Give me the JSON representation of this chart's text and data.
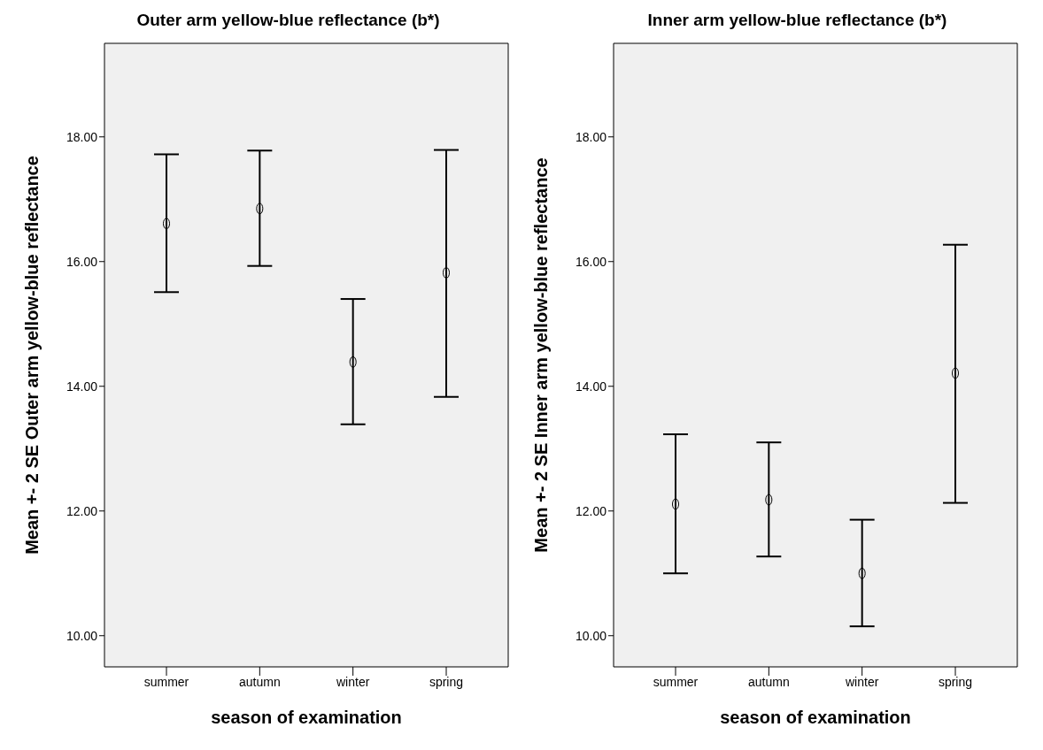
{
  "chart_data": [
    {
      "type": "scatter",
      "title": "Outer arm yellow-blue reflectance (b*)",
      "xlabel": "season of examination",
      "ylabel": "Mean +- 2 SE Outer arm yellow-blue reflectance",
      "categories": [
        "summer",
        "autumn",
        "winter",
        "spring"
      ],
      "color": "#000000",
      "values": [
        16.61,
        16.85,
        14.39,
        15.82
      ],
      "errors": [
        [
          15.51,
          17.72
        ],
        [
          15.93,
          17.78
        ],
        [
          13.39,
          15.4
        ],
        [
          13.83,
          17.79
        ]
      ],
      "ylim": [
        9.5,
        19.5
      ],
      "yticks": [
        {
          "value": 10,
          "label": "10.00"
        },
        {
          "value": 12,
          "label": "12.00"
        },
        {
          "value": 14,
          "label": "14.00"
        },
        {
          "value": 16,
          "label": "16.00"
        },
        {
          "value": 18,
          "label": "18.00"
        }
      ],
      "marker": "circle",
      "grid": false
    },
    {
      "type": "scatter",
      "title": "Inner arm yellow-blue reflectance (b*)",
      "xlabel": "season of examination",
      "ylabel": "Mean +- 2 SE Inner arm yellow-blue reflectance",
      "categories": [
        "summer",
        "autumn",
        "winter",
        "spring"
      ],
      "color": "#000000",
      "values": [
        12.11,
        12.18,
        11.0,
        14.21
      ],
      "errors": [
        [
          11.0,
          13.23
        ],
        [
          11.27,
          13.1
        ],
        [
          10.15,
          11.86
        ],
        [
          12.13,
          16.27
        ]
      ],
      "ylim": [
        9.5,
        19.5
      ],
      "yticks": [
        {
          "value": 10,
          "label": "10.00"
        },
        {
          "value": 12,
          "label": "12.00"
        },
        {
          "value": 14,
          "label": "14.00"
        },
        {
          "value": 16,
          "label": "16.00"
        },
        {
          "value": 18,
          "label": "18.00"
        }
      ],
      "marker": "circle",
      "grid": false
    }
  ]
}
